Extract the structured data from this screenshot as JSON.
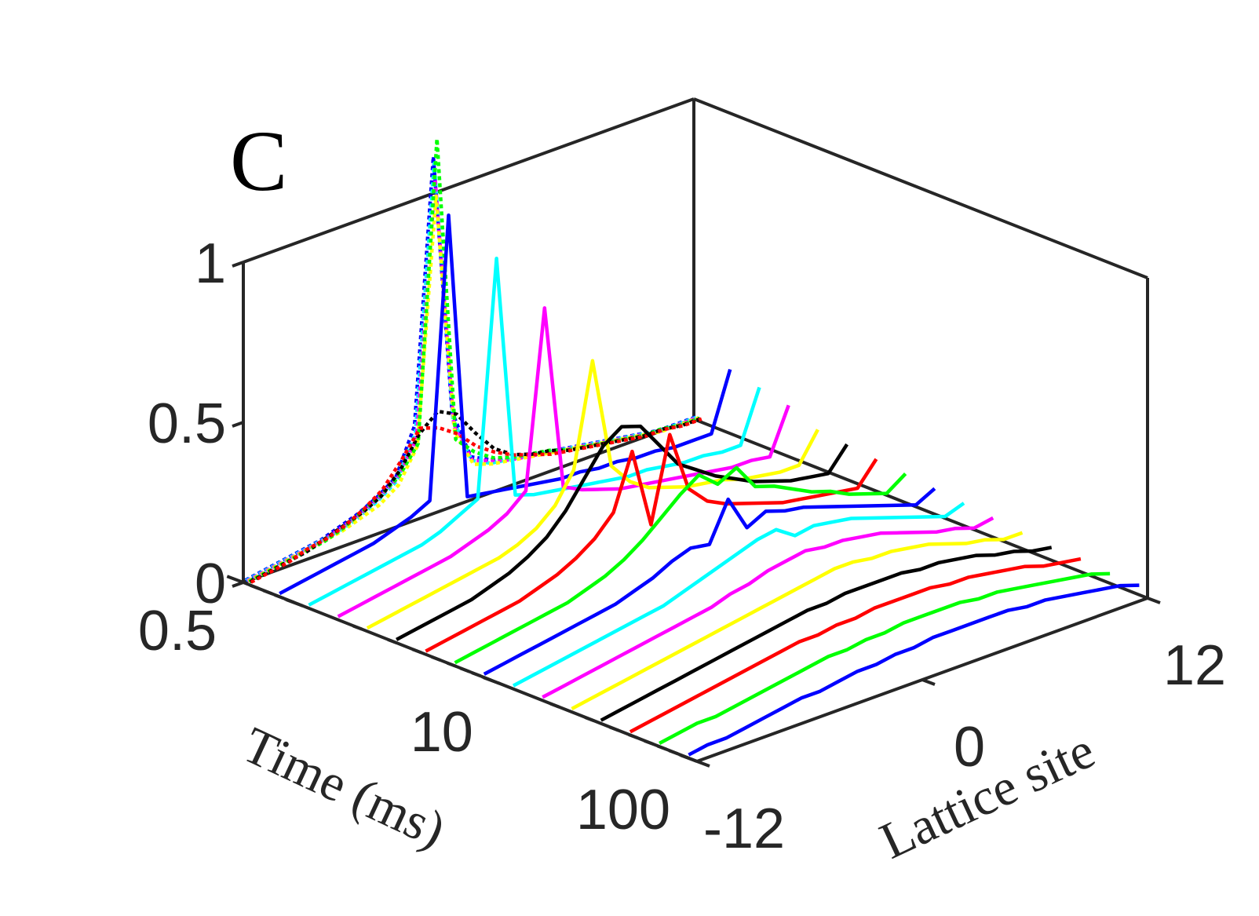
{
  "chart_data": {
    "type": "waterfall-line-3d",
    "panel_label": "C",
    "xlabel": "Lattice site",
    "ylabel": "Time (ms)",
    "zlabel": "",
    "x_ticks": [
      "-12",
      "0",
      "12"
    ],
    "x_tick_values": [
      -12,
      0,
      12
    ],
    "y_ticks": [
      "0.5",
      "10",
      "100"
    ],
    "y_tick_values": [
      0.5,
      10,
      100
    ],
    "y_scale": "log",
    "z_ticks": [
      "0",
      "0.5",
      "1"
    ],
    "z_tick_values": [
      0,
      0.5,
      1
    ],
    "xlim": [
      -12,
      12
    ],
    "ylim": [
      0.5,
      100
    ],
    "zlim": [
      0,
      1
    ],
    "sites": [
      -12,
      -11,
      -10,
      -9,
      -8,
      -7,
      -6,
      -5,
      -4,
      -3,
      -2,
      -1,
      0,
      1,
      2,
      3,
      4,
      5,
      6,
      7,
      8,
      9,
      10,
      11,
      12
    ],
    "dotted_series": [
      {
        "color": "#0000ff",
        "values": [
          0.01,
          0.02,
          0.03,
          0.04,
          0.05,
          0.07,
          0.09,
          0.12,
          0.16,
          0.3,
          1.12,
          0.3,
          0.14,
          0.11,
          0.09,
          0.08,
          0.07,
          0.06,
          0.05,
          0.04,
          0.03,
          0.02,
          0.01,
          0.01,
          0.01
        ]
      },
      {
        "color": "#00ffff",
        "values": [
          0.01,
          0.02,
          0.03,
          0.04,
          0.05,
          0.06,
          0.08,
          0.11,
          0.15,
          0.28,
          1.1,
          0.28,
          0.13,
          0.1,
          0.09,
          0.08,
          0.07,
          0.06,
          0.05,
          0.04,
          0.03,
          0.02,
          0.01,
          0.01,
          0.01
        ]
      },
      {
        "color": "#ff00ff",
        "values": [
          0.01,
          0.02,
          0.03,
          0.04,
          0.05,
          0.07,
          0.09,
          0.12,
          0.16,
          0.26,
          1.05,
          0.26,
          0.13,
          0.11,
          0.09,
          0.08,
          0.07,
          0.06,
          0.05,
          0.04,
          0.03,
          0.02,
          0.01,
          0.01,
          0.01
        ]
      },
      {
        "color": "#ffff00",
        "values": [
          0.01,
          0.02,
          0.03,
          0.04,
          0.05,
          0.06,
          0.08,
          0.1,
          0.14,
          0.24,
          1.0,
          0.24,
          0.12,
          0.1,
          0.09,
          0.08,
          0.07,
          0.06,
          0.05,
          0.04,
          0.03,
          0.02,
          0.01,
          0.01,
          0.01
        ]
      },
      {
        "color": "#00ff00",
        "values": [
          0.01,
          0.02,
          0.03,
          0.04,
          0.05,
          0.07,
          0.1,
          0.13,
          0.17,
          0.25,
          1.18,
          0.22,
          0.16,
          0.12,
          0.1,
          0.09,
          0.08,
          0.06,
          0.05,
          0.04,
          0.03,
          0.02,
          0.02,
          0.01,
          0.01
        ]
      },
      {
        "color": "#000000",
        "values": [
          0.01,
          0.02,
          0.03,
          0.04,
          0.06,
          0.08,
          0.1,
          0.13,
          0.19,
          0.28,
          0.33,
          0.3,
          0.22,
          0.15,
          0.11,
          0.09,
          0.08,
          0.06,
          0.05,
          0.04,
          0.03,
          0.02,
          0.02,
          0.01,
          0.01
        ]
      },
      {
        "color": "#ff0000",
        "values": [
          0.01,
          0.02,
          0.03,
          0.05,
          0.06,
          0.08,
          0.11,
          0.15,
          0.22,
          0.3,
          0.28,
          0.24,
          0.18,
          0.14,
          0.11,
          0.09,
          0.07,
          0.06,
          0.05,
          0.04,
          0.03,
          0.02,
          0.02,
          0.01,
          0.01
        ]
      }
    ],
    "solid_series": [
      {
        "color": "#0000ff",
        "peak_site": -3,
        "tail": 0.05,
        "values": [
          0.01,
          0.02,
          0.03,
          0.04,
          0.05,
          0.06,
          0.08,
          0.1,
          0.13,
          1.0,
          0.1,
          0.09,
          0.08,
          0.07,
          0.06,
          0.05,
          0.05,
          0.04,
          0.04,
          0.03,
          0.03,
          0.02,
          0.02,
          0.02,
          0.2
        ]
      },
      {
        "color": "#00ffff",
        "peak_site": -2,
        "tail": 0.05,
        "values": [
          0.01,
          0.02,
          0.03,
          0.04,
          0.05,
          0.06,
          0.07,
          0.09,
          0.12,
          0.15,
          0.88,
          0.12,
          0.1,
          0.09,
          0.08,
          0.07,
          0.06,
          0.05,
          0.05,
          0.04,
          0.03,
          0.03,
          0.02,
          0.02,
          0.18
        ]
      },
      {
        "color": "#ff00ff",
        "peak_site": -1,
        "tail": 0.05,
        "values": [
          0.01,
          0.02,
          0.03,
          0.04,
          0.05,
          0.06,
          0.07,
          0.09,
          0.11,
          0.14,
          0.19,
          0.74,
          0.16,
          0.13,
          0.11,
          0.09,
          0.08,
          0.07,
          0.06,
          0.05,
          0.04,
          0.03,
          0.03,
          0.02,
          0.16
        ]
      },
      {
        "color": "#ffff00",
        "peak_site": 0,
        "tail": 0.05,
        "values": [
          0.01,
          0.02,
          0.03,
          0.04,
          0.05,
          0.06,
          0.07,
          0.08,
          0.1,
          0.13,
          0.18,
          0.27,
          0.59,
          0.24,
          0.17,
          0.13,
          0.11,
          0.09,
          0.08,
          0.07,
          0.05,
          0.04,
          0.03,
          0.03,
          0.12
        ]
      },
      {
        "color": "#000000",
        "values": [
          0.01,
          0.02,
          0.03,
          0.04,
          0.05,
          0.07,
          0.09,
          0.12,
          0.16,
          0.22,
          0.3,
          0.38,
          0.42,
          0.4,
          0.32,
          0.24,
          0.2,
          0.16,
          0.13,
          0.1,
          0.08,
          0.06,
          0.05,
          0.04,
          0.11
        ]
      },
      {
        "color": "#ff0000",
        "values": [
          0.01,
          0.02,
          0.03,
          0.04,
          0.05,
          0.06,
          0.08,
          0.1,
          0.13,
          0.17,
          0.23,
          0.4,
          0.15,
          0.41,
          0.22,
          0.16,
          0.13,
          0.11,
          0.09,
          0.07,
          0.06,
          0.05,
          0.04,
          0.03,
          0.1
        ]
      },
      {
        "color": "#00ff00",
        "values": [
          0.01,
          0.02,
          0.03,
          0.04,
          0.05,
          0.06,
          0.07,
          0.09,
          0.11,
          0.14,
          0.18,
          0.23,
          0.28,
          0.32,
          0.27,
          0.3,
          0.22,
          0.2,
          0.17,
          0.14,
          0.12,
          0.09,
          0.07,
          0.05,
          0.09
        ]
      },
      {
        "color": "#0000ff",
        "values": [
          0.01,
          0.02,
          0.03,
          0.04,
          0.05,
          0.06,
          0.07,
          0.08,
          0.1,
          0.12,
          0.15,
          0.17,
          0.16,
          0.28,
          0.17,
          0.2,
          0.18,
          0.17,
          0.15,
          0.13,
          0.11,
          0.09,
          0.07,
          0.05,
          0.08
        ]
      },
      {
        "color": "#00ffff",
        "values": [
          0.01,
          0.02,
          0.03,
          0.04,
          0.05,
          0.06,
          0.07,
          0.08,
          0.09,
          0.11,
          0.13,
          0.15,
          0.17,
          0.19,
          0.2,
          0.16,
          0.17,
          0.16,
          0.15,
          0.13,
          0.11,
          0.09,
          0.07,
          0.05,
          0.07
        ]
      },
      {
        "color": "#ff00ff",
        "values": [
          0.01,
          0.02,
          0.03,
          0.04,
          0.05,
          0.06,
          0.07,
          0.08,
          0.09,
          0.1,
          0.12,
          0.13,
          0.15,
          0.16,
          0.17,
          0.16,
          0.16,
          0.15,
          0.14,
          0.12,
          0.1,
          0.08,
          0.07,
          0.05,
          0.06
        ]
      },
      {
        "color": "#ffff00",
        "values": [
          0.01,
          0.02,
          0.03,
          0.04,
          0.05,
          0.06,
          0.07,
          0.08,
          0.09,
          0.1,
          0.11,
          0.12,
          0.13,
          0.14,
          0.15,
          0.15,
          0.14,
          0.14,
          0.13,
          0.12,
          0.1,
          0.08,
          0.07,
          0.05,
          0.05
        ]
      },
      {
        "color": "#000000",
        "values": [
          0.01,
          0.02,
          0.03,
          0.04,
          0.05,
          0.06,
          0.07,
          0.08,
          0.09,
          0.1,
          0.11,
          0.12,
          0.12,
          0.13,
          0.13,
          0.13,
          0.13,
          0.12,
          0.12,
          0.11,
          0.1,
          0.08,
          0.07,
          0.05,
          0.04
        ]
      },
      {
        "color": "#ff0000",
        "values": [
          0.01,
          0.02,
          0.03,
          0.04,
          0.05,
          0.06,
          0.07,
          0.08,
          0.09,
          0.1,
          0.1,
          0.11,
          0.11,
          0.12,
          0.12,
          0.12,
          0.12,
          0.11,
          0.11,
          0.1,
          0.09,
          0.08,
          0.06,
          0.05,
          0.04
        ]
      },
      {
        "color": "#00ff00",
        "values": [
          0.01,
          0.02,
          0.03,
          0.03,
          0.04,
          0.05,
          0.06,
          0.07,
          0.08,
          0.09,
          0.09,
          0.1,
          0.1,
          0.11,
          0.11,
          0.11,
          0.11,
          0.1,
          0.1,
          0.09,
          0.08,
          0.07,
          0.06,
          0.05,
          0.03
        ]
      },
      {
        "color": "#0000ff",
        "values": [
          0.01,
          0.02,
          0.02,
          0.03,
          0.04,
          0.05,
          0.06,
          0.06,
          0.07,
          0.08,
          0.08,
          0.09,
          0.09,
          0.1,
          0.1,
          0.1,
          0.1,
          0.1,
          0.09,
          0.09,
          0.08,
          0.07,
          0.06,
          0.05,
          0.03
        ]
      }
    ]
  }
}
